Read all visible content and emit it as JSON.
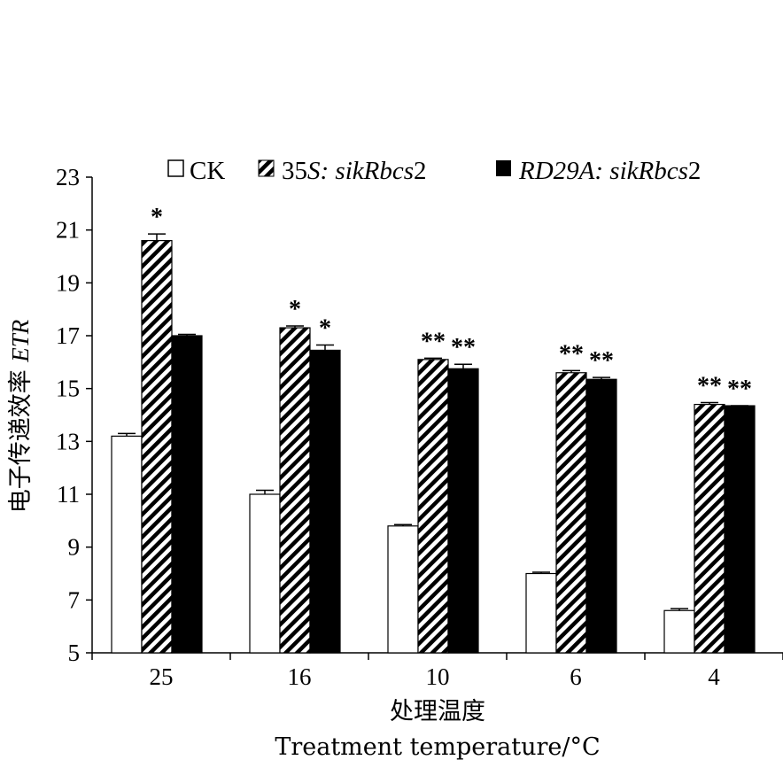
{
  "chart_data": {
    "type": "bar",
    "title": "",
    "categories": [
      "25",
      "16",
      "10",
      "6",
      "4"
    ],
    "series": [
      {
        "name": "CK",
        "values": [
          13.2,
          11.0,
          9.8,
          8.0,
          6.6
        ],
        "errors": [
          0.1,
          0.15,
          0.05,
          0.05,
          0.07
        ],
        "significance": [
          "",
          "",
          "",
          "",
          ""
        ],
        "fill": "#ffffff"
      },
      {
        "name": "35S: sikRbcs2",
        "values": [
          20.6,
          17.3,
          16.1,
          15.6,
          14.4
        ],
        "errors": [
          0.25,
          0.07,
          0.05,
          0.08,
          0.07
        ],
        "significance": [
          "*",
          "*",
          "**",
          "**",
          "**"
        ],
        "fill": "hatch"
      },
      {
        "name": "RD29A: sikRbcs2",
        "values": [
          17.0,
          16.45,
          15.75,
          15.35,
          14.35
        ],
        "errors": [
          0.05,
          0.2,
          0.17,
          0.07,
          0.0
        ],
        "significance": [
          "",
          "*",
          "**",
          "**",
          "**"
        ],
        "fill": "#000000"
      }
    ],
    "ylabel": "电子传递效率 ETR",
    "xlabel_cn": "处理温度",
    "xlabel_en": "Treatment temperature/°C",
    "ylim": [
      5,
      23
    ],
    "yticks": [
      5,
      7,
      9,
      11,
      13,
      15,
      17,
      19,
      21,
      23
    ],
    "legend_position": "top",
    "grid": false
  }
}
